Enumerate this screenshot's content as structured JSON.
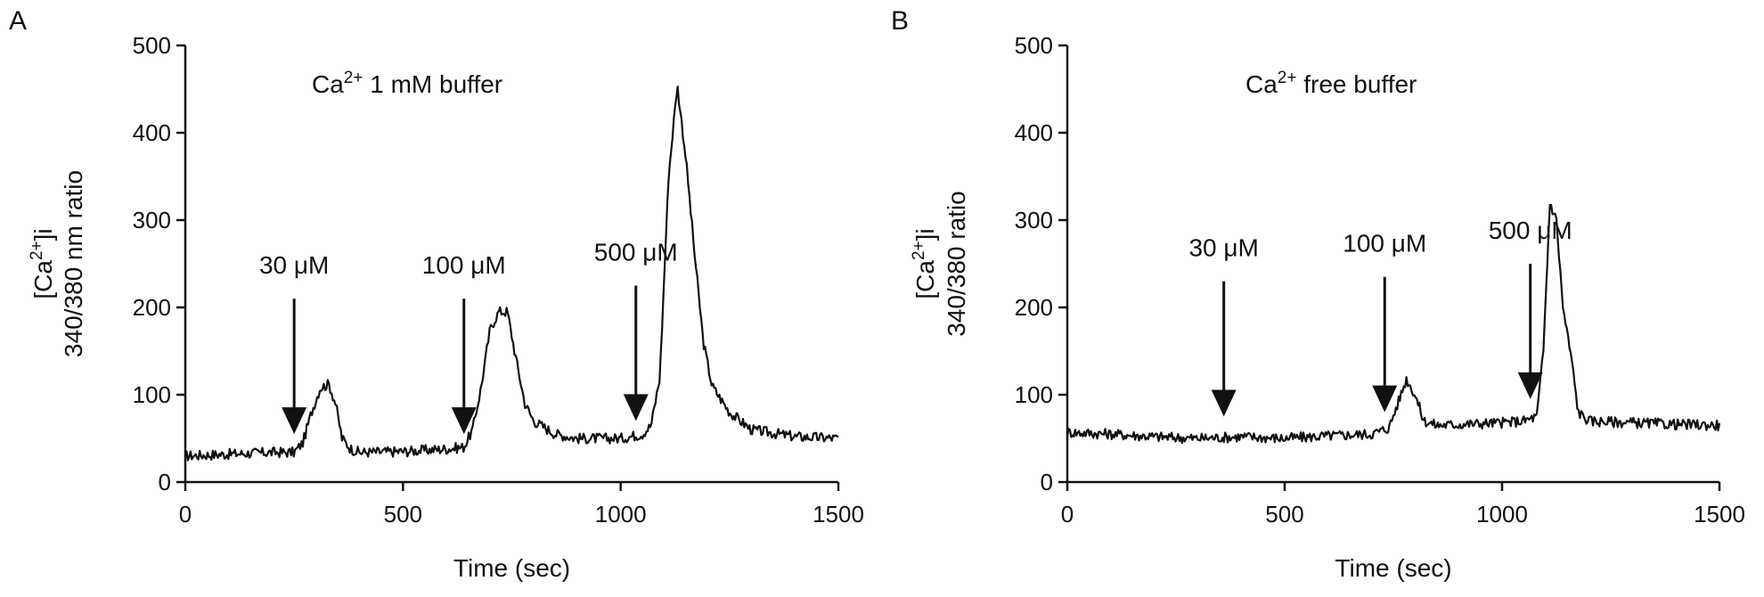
{
  "chart_data": [
    {
      "panel": "A",
      "type": "line",
      "title": "Ca²⁺ 1 mM buffer",
      "title_parts": {
        "pre": "Ca",
        "sup": "2+",
        "post": " 1 mM buffer"
      },
      "xlabel": "Time (sec)",
      "ylabel_line1": {
        "pre": "[Ca",
        "sup": "2+",
        "post": "]i"
      },
      "ylabel_line2": "340/380 nm ratio",
      "xlim": [
        0,
        1500
      ],
      "ylim": [
        0,
        500
      ],
      "xticks": [
        "0",
        "500",
        "1000",
        "1500"
      ],
      "yticks": [
        "0",
        "100",
        "200",
        "300",
        "400",
        "500"
      ],
      "grid": false,
      "annotations": [
        {
          "label": "30 μM",
          "x": 250,
          "arrow_top": 210,
          "arrow_bottom": 55
        },
        {
          "label": "100 μM",
          "x": 640,
          "arrow_top": 210,
          "arrow_bottom": 55
        },
        {
          "label": "500 μM",
          "x": 1035,
          "arrow_top": 225,
          "arrow_bottom": 70
        }
      ],
      "series": [
        {
          "color": "#111111",
          "x": [
            0,
            100,
            200,
            250,
            270,
            290,
            310,
            330,
            345,
            360,
            380,
            400,
            500,
            600,
            640,
            660,
            680,
            700,
            720,
            740,
            760,
            780,
            800,
            850,
            900,
            1000,
            1050,
            1070,
            1090,
            1110,
            1130,
            1150,
            1170,
            1190,
            1210,
            1250,
            1300,
            1400,
            1500
          ],
          "y": [
            30,
            32,
            34,
            34,
            45,
            80,
            108,
            112,
            90,
            50,
            38,
            34,
            35,
            38,
            40,
            60,
            110,
            175,
            195,
            195,
            140,
            90,
            70,
            55,
            50,
            50,
            55,
            65,
            120,
            350,
            455,
            370,
            260,
            160,
            110,
            80,
            60,
            52,
            50
          ]
        }
      ]
    },
    {
      "panel": "B",
      "type": "line",
      "title": "Ca²⁺ free buffer",
      "title_parts": {
        "pre": "Ca",
        "sup": "2+",
        "post": " free buffer"
      },
      "xlabel": "Time (sec)",
      "ylabel_line1": {
        "pre": "[Ca",
        "sup": "2+",
        "post": "]i"
      },
      "ylabel_line2": "340/380 ratio",
      "xlim": [
        0,
        1500
      ],
      "ylim": [
        0,
        500
      ],
      "xticks": [
        "0",
        "500",
        "1000",
        "1500"
      ],
      "yticks": [
        "0",
        "100",
        "200",
        "300",
        "400",
        "500"
      ],
      "grid": false,
      "annotations": [
        {
          "label": "30 μM",
          "x": 360,
          "arrow_top": 230,
          "arrow_bottom": 75
        },
        {
          "label": "100 μM",
          "x": 730,
          "arrow_top": 235,
          "arrow_bottom": 80
        },
        {
          "label": "500 μM",
          "x": 1065,
          "arrow_top": 250,
          "arrow_bottom": 95
        }
      ],
      "series": [
        {
          "color": "#111111",
          "x": [
            0,
            100,
            200,
            300,
            400,
            500,
            600,
            700,
            740,
            760,
            780,
            800,
            820,
            850,
            900,
            1000,
            1050,
            1080,
            1095,
            1110,
            1125,
            1140,
            1160,
            1175,
            1200,
            1300,
            1400,
            1500
          ],
          "y": [
            57,
            55,
            52,
            50,
            52,
            50,
            53,
            55,
            62,
            90,
            118,
            100,
            70,
            65,
            66,
            68,
            70,
            75,
            150,
            320,
            300,
            200,
            140,
            80,
            70,
            68,
            66,
            65
          ]
        }
      ]
    }
  ]
}
